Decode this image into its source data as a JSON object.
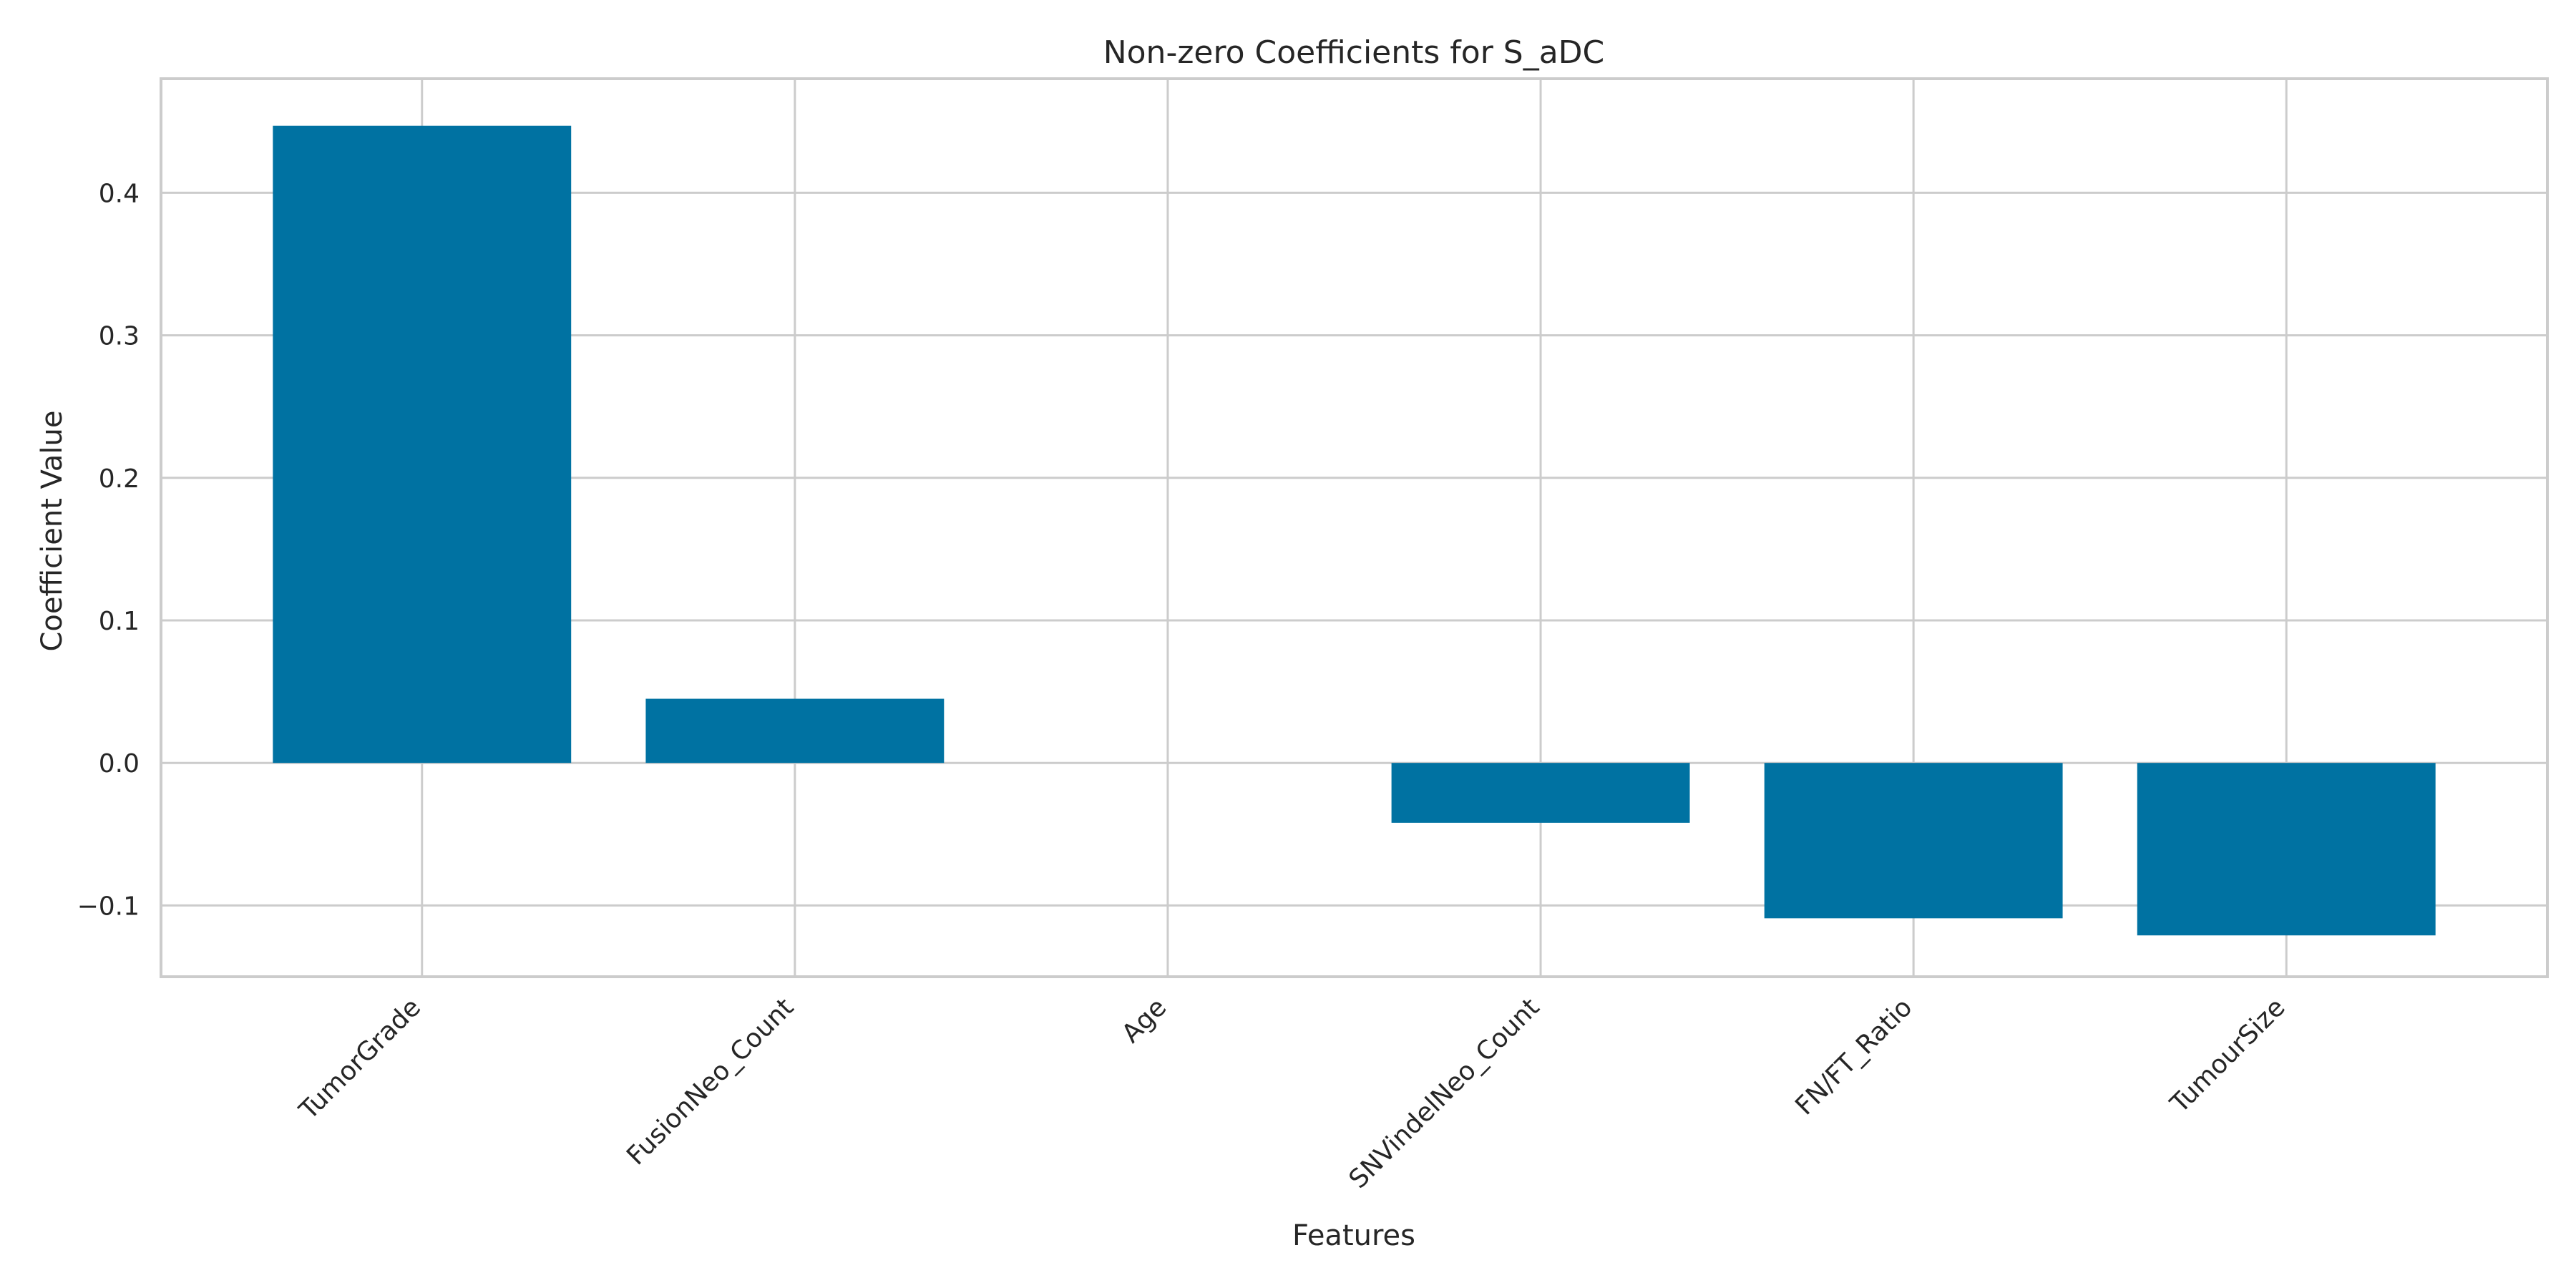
{
  "chart_data": {
    "type": "bar",
    "title": "Non-zero Coefficients for S_aDC",
    "xlabel": "Features",
    "ylabel": "Coefficient Value",
    "categories": [
      "TumorGrade",
      "FusionNeo_Count",
      "Age",
      "SNVindelNeo_Count",
      "FN/FT_Ratio",
      "TumourSize"
    ],
    "values": [
      0.447,
      0.045,
      0.0,
      -0.042,
      -0.109,
      -0.121
    ],
    "ylim": [
      -0.15,
      0.48
    ],
    "yticks": [
      -0.1,
      0.0,
      0.1,
      0.2,
      0.3,
      0.4
    ],
    "ytick_labels": [
      "−0.1",
      "0.0",
      "0.1",
      "0.2",
      "0.3",
      "0.4"
    ],
    "grid": true,
    "bar_color": "#0072a2"
  }
}
